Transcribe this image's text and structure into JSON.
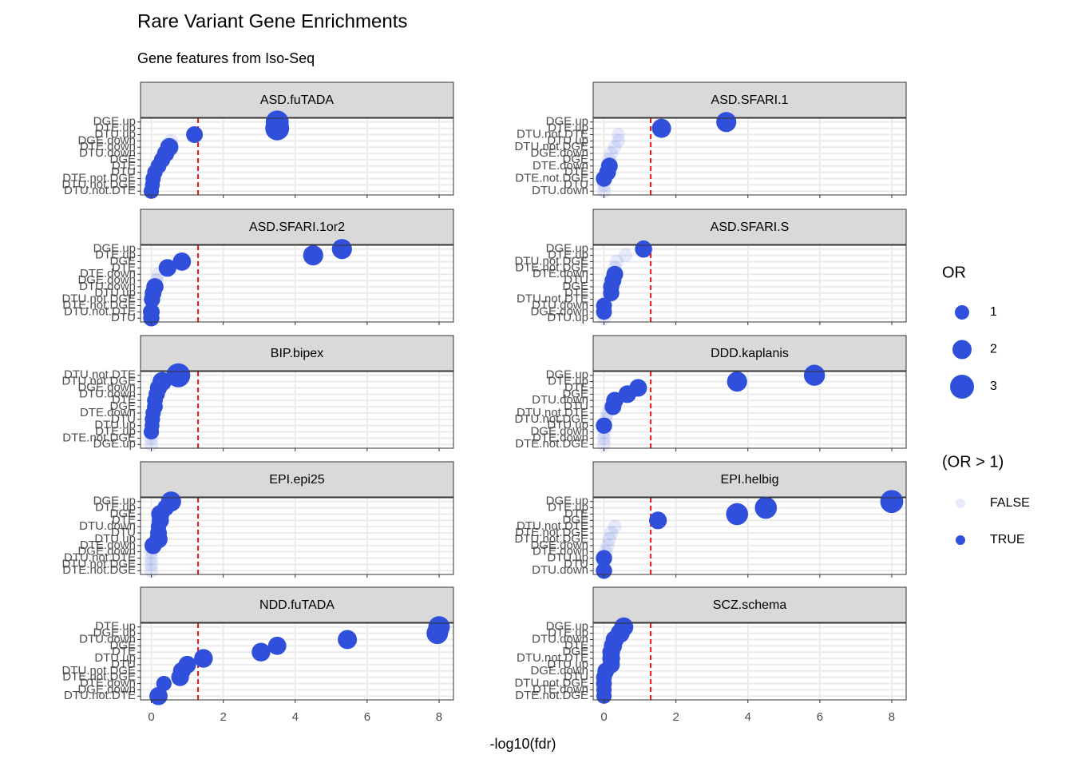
{
  "chart_data": {
    "type": "scatter",
    "title": "Rare Variant Gene Enrichments",
    "subtitle": "Gene features from Iso-Seq",
    "x_label": "-log10(fdr)",
    "xlim": [
      -0.3,
      8.4
    ],
    "xticks": [
      0,
      2,
      4,
      6,
      8
    ],
    "threshold": 1.3,
    "color": "#3050dc",
    "threshold_color": "#ee1111",
    "grid": true,
    "facets": [
      {
        "title": "ASD.fuTADA",
        "categories": [
          "DGE.up",
          "DTE.up",
          "DTU.up",
          "DGE.down",
          "DTE.down",
          "DTU.down",
          "DGE",
          "DTE",
          "DTU",
          "DTE.not.DGE",
          "DTU.not.DGE",
          "DTU.not.DTE"
        ],
        "x": [
          3.5,
          3.5,
          1.2,
          0.55,
          0.5,
          0.4,
          0.3,
          0.2,
          0.1,
          0.05,
          0.03,
          0.0
        ],
        "or": [
          2.8,
          3.0,
          1.5,
          0.9,
          1.8,
          1.6,
          1.4,
          1.3,
          1.2,
          1.2,
          1.1,
          1.2
        ]
      },
      {
        "title": "ASD.SFARI.1",
        "categories": [
          "DGE.up",
          "DTE.up",
          "DTU.not.DTE",
          "DTU.up",
          "DTU.not.DGE",
          "DGE.down",
          "DGE",
          "DTE.down",
          "DTE",
          "DTE.not.DGE",
          "DTU",
          "DTU.down"
        ],
        "x": [
          3.4,
          1.6,
          0.4,
          0.4,
          0.3,
          0.2,
          0.15,
          0.15,
          0.1,
          0.0,
          0.0,
          0.0
        ],
        "or": [
          2.2,
          2.0,
          0.8,
          0.8,
          0.8,
          0.9,
          0.9,
          1.5,
          1.5,
          1.4,
          0.9,
          0.9
        ]
      },
      {
        "title": "ASD.SFARI.1or2",
        "categories": [
          "DGE.up",
          "DTE.up",
          "DGE",
          "DTE",
          "DTE.down",
          "DGE.down",
          "DTU.down",
          "DTU.up",
          "DTU.not.DGE",
          "DTE.not.DGE",
          "DTU.not.DTE",
          "DTU"
        ],
        "x": [
          5.3,
          4.5,
          0.85,
          0.45,
          0.2,
          0.15,
          0.1,
          0.05,
          0.02,
          0.01,
          0.0,
          0.0
        ],
        "or": [
          2.2,
          2.2,
          1.8,
          1.7,
          0.9,
          0.9,
          1.6,
          1.5,
          1.4,
          0.9,
          1.5,
          1.4
        ]
      },
      {
        "title": "ASD.SFARI.S",
        "categories": [
          "DGE.up",
          "DTE.up",
          "DTU.not.DGE",
          "DTE.not.DGE",
          "DTE.down",
          "DTU",
          "DGE",
          "DTE",
          "DTU.not.DTE",
          "DTU.down",
          "DGE.down",
          "DTU.up"
        ],
        "x": [
          1.1,
          0.6,
          0.35,
          0.3,
          0.3,
          0.25,
          0.2,
          0.2,
          0.1,
          0.0,
          0.0,
          0.0
        ],
        "or": [
          1.6,
          0.9,
          0.9,
          0.9,
          1.5,
          1.5,
          1.4,
          1.4,
          0.9,
          1.3,
          1.3,
          0.9
        ]
      },
      {
        "title": "BIP.bipex",
        "categories": [
          "DTU.not.DTE",
          "DTU.not.DGE",
          "DGE.down",
          "DTU.down",
          "DTE",
          "DGE",
          "DTE.down",
          "DTU",
          "DTU.up",
          "DTE.up",
          "DTE.not.DGE",
          "DGE.up"
        ],
        "x": [
          0.75,
          0.3,
          0.2,
          0.15,
          0.1,
          0.1,
          0.05,
          0.03,
          0.02,
          0.0,
          0.0,
          0.0
        ],
        "or": [
          3.0,
          2.0,
          1.6,
          1.4,
          1.3,
          1.3,
          1.2,
          1.2,
          1.1,
          1.2,
          0.9,
          0.9
        ]
      },
      {
        "title": "DDD.kaplanis",
        "categories": [
          "DGE.up",
          "DTE.up",
          "DTE",
          "DGE",
          "DTU.down",
          "DTU",
          "DTU.not.DTE",
          "DTU.not.DGE",
          "DTU.up",
          "DGE.down",
          "DTE.down",
          "DTE.not.DGE"
        ],
        "x": [
          5.85,
          3.7,
          0.95,
          0.65,
          0.3,
          0.25,
          0.1,
          0.05,
          0.0,
          0.0,
          0.0,
          0.0
        ],
        "or": [
          2.4,
          2.2,
          1.7,
          1.7,
          1.6,
          1.5,
          0.9,
          0.9,
          1.4,
          0.9,
          0.9,
          0.9
        ]
      },
      {
        "title": "EPI.epi25",
        "categories": [
          "DGE.up",
          "DTE.up",
          "DGE",
          "DTE",
          "DTU.down",
          "DTU",
          "DTU.up",
          "DTE.down",
          "DGE.down",
          "DTU.not.DTE",
          "DTU.not.DGE",
          "DTE.not.DGE"
        ],
        "x": [
          0.55,
          0.4,
          0.25,
          0.25,
          0.2,
          0.2,
          0.2,
          0.05,
          0.0,
          0.0,
          0.0,
          0.0
        ],
        "or": [
          2.2,
          1.5,
          1.8,
          1.6,
          1.2,
          1.5,
          1.8,
          1.6,
          0.9,
          0.9,
          0.9,
          0.9
        ]
      },
      {
        "title": "EPI.helbig",
        "categories": [
          "DGE.up",
          "DTE.up",
          "DTE",
          "DGE",
          "DTU.not.DTE",
          "DTE.not.DGE",
          "DTU.not.DGE",
          "DGE.down",
          "DTE.down",
          "DTU.up",
          "DTU",
          "DTU.down"
        ],
        "x": [
          8.0,
          4.5,
          3.7,
          1.5,
          0.3,
          0.2,
          0.15,
          0.1,
          0.05,
          0.0,
          0.0,
          0.0
        ],
        "or": [
          2.8,
          2.6,
          2.6,
          1.7,
          0.9,
          0.9,
          0.9,
          0.9,
          0.9,
          1.4,
          0.9,
          1.4
        ]
      },
      {
        "title": "NDD.fuTADA",
        "categories": [
          "DTE.up",
          "DGE.up",
          "DTU.down",
          "DGE",
          "DTE",
          "DTU.up",
          "DTU",
          "DTU.not.DGE",
          "DTE.not.DGE",
          "DTE.down",
          "DGE.down",
          "DTU.not.DTE"
        ],
        "x": [
          8.0,
          7.95,
          5.45,
          3.5,
          3.05,
          1.45,
          1.0,
          0.85,
          0.8,
          0.35,
          0.25,
          0.2
        ],
        "or": [
          2.5,
          2.5,
          2.0,
          1.8,
          1.9,
          1.9,
          1.7,
          1.7,
          1.7,
          1.2,
          0.9,
          1.8
        ]
      },
      {
        "title": "SCZ.schema",
        "categories": [
          "DGE.up",
          "DTE.up",
          "DTU.down",
          "DTE",
          "DGE",
          "DTU.not.DTE",
          "DTU.up",
          "DGE.down",
          "DTU",
          "DTU.not.DGE",
          "DTE.down",
          "DTE.not.DGE"
        ],
        "x": [
          0.55,
          0.45,
          0.3,
          0.25,
          0.2,
          0.2,
          0.2,
          0.05,
          0.0,
          0.0,
          0.0,
          0.0
        ],
        "or": [
          2.0,
          2.0,
          1.8,
          1.8,
          1.7,
          1.7,
          1.6,
          1.5,
          1.3,
          1.3,
          1.2,
          1.2
        ]
      }
    ],
    "size_legend": {
      "title": "OR",
      "values": [
        1,
        2,
        3
      ]
    },
    "alpha_legend": {
      "title": "(OR > 1)",
      "labels": [
        "FALSE",
        "TRUE"
      ],
      "alphas": [
        0.12,
        1
      ]
    }
  }
}
